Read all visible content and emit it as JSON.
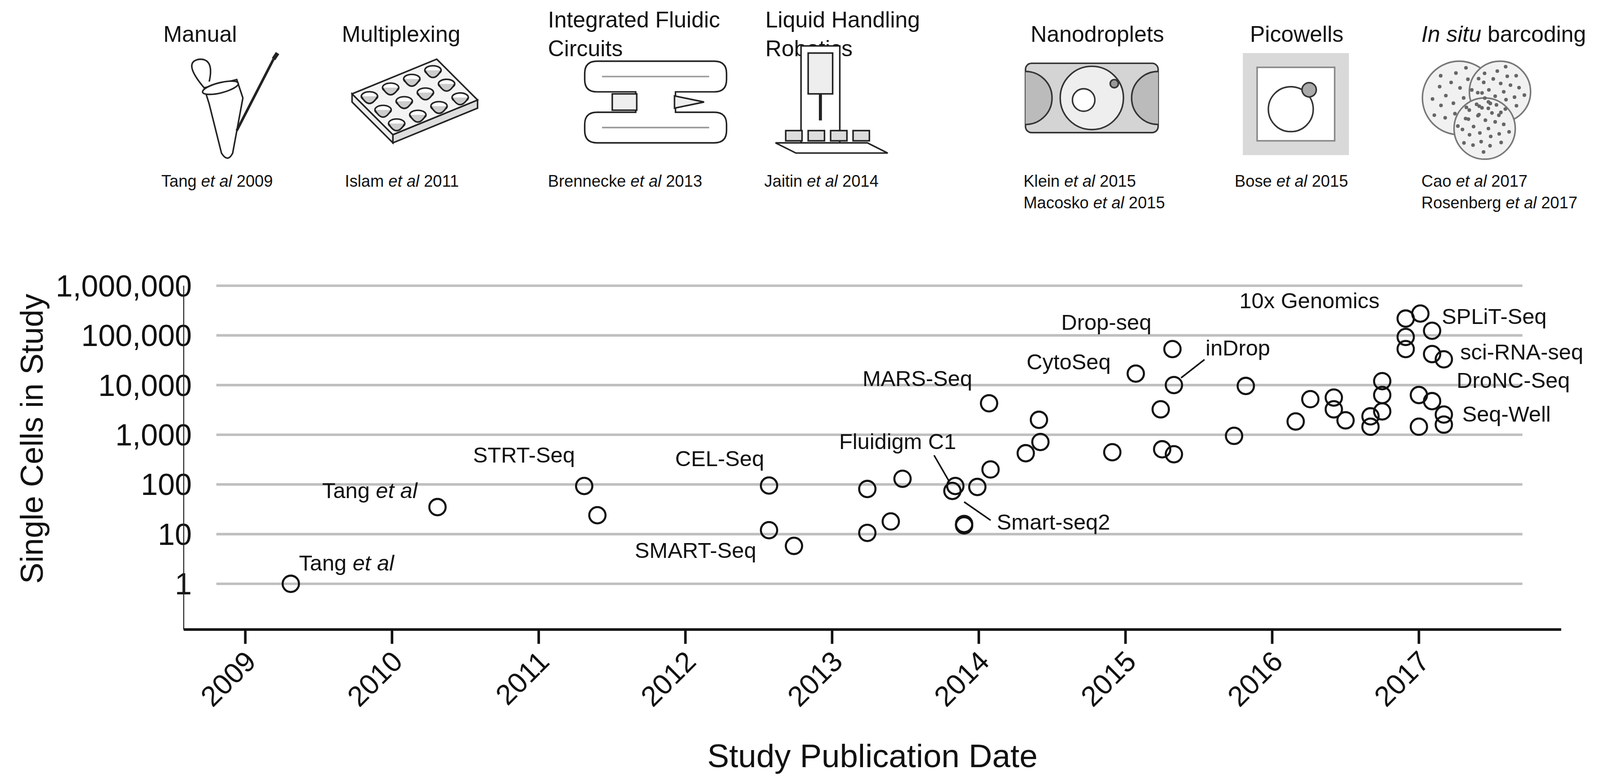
{
  "panels": [
    {
      "title": [
        {
          "text": "Manual"
        }
      ],
      "citations": [
        {
          "text": "Tang et al 2009",
          "italic": "et al"
        }
      ]
    },
    {
      "title": [
        {
          "text": "Multiplexing"
        }
      ],
      "citations": [
        {
          "text": "Islam et al 2011",
          "italic": "et al"
        }
      ]
    },
    {
      "title": [
        {
          "text": "Integrated Fluidic"
        },
        {
          "text": "Circuits"
        }
      ],
      "citations": [
        {
          "text": "Brennecke et al 2013",
          "italic": "et al"
        }
      ]
    },
    {
      "title": [
        {
          "text": "Liquid Handling"
        },
        {
          "text": "Robotics"
        }
      ],
      "citations": [
        {
          "text": "Jaitin et al 2014",
          "italic": "et al"
        }
      ]
    },
    {
      "title": [
        {
          "text": "Nanodroplets"
        }
      ],
      "citations": [
        {
          "text": "Klein et al 2015",
          "italic": "et al"
        },
        {
          "text": "Macosko et al 2015",
          "italic": "et al"
        }
      ]
    },
    {
      "title": [
        {
          "text": "Picowells"
        }
      ],
      "citations": [
        {
          "text": "Bose et al 2015",
          "italic": "et al"
        }
      ]
    },
    {
      "title": [
        {
          "text": "In situ barcoding",
          "italic": "In situ"
        }
      ],
      "citations": [
        {
          "text": "Cao et al 2017",
          "italic": "et al"
        },
        {
          "text": "Rosenberg et al 2017",
          "italic": "et al"
        }
      ]
    }
  ],
  "chart_data": {
    "type": "scatter",
    "x_label": "Study Publication Date",
    "y_label": "Single Cells in Study",
    "x": [
      2009.31,
      2010.31,
      2011.31,
      2011.4,
      2012.57,
      2012.57,
      2012.74,
      2013.24,
      2013.24,
      2013.4,
      2013.48,
      2013.82,
      2013.84,
      2013.9,
      2013.9,
      2013.99,
      2014.07,
      2014.08,
      2014.32,
      2014.41,
      2014.42,
      2014.91,
      2015.07,
      2015.24,
      2015.25,
      2015.32,
      2015.33,
      2015.33,
      2015.74,
      2015.82,
      2016.16,
      2016.26,
      2016.42,
      2016.42,
      2016.5,
      2016.67,
      2016.67,
      2016.75,
      2016.75,
      2016.75,
      2016.91,
      2016.91,
      2016.91,
      2017.0,
      2017.0,
      2017.01,
      2017.09,
      2017.09,
      2017.09,
      2017.17,
      2017.17,
      2017.17
    ],
    "values": [
      1,
      35,
      93,
      24,
      95,
      12,
      5.8,
      81,
      10.6,
      18,
      130,
      74,
      93,
      15,
      16,
      89,
      4300,
      200,
      425,
      2000,
      715,
      445,
      17000,
      3250,
      510,
      53000,
      10000,
      405,
      950,
      9600,
      1850,
      5200,
      5600,
      3250,
      1950,
      2350,
      1450,
      12000,
      6300,
      2950,
      218000,
      93000,
      53000,
      6300,
      1450,
      275000,
      124000,
      42000,
      4750,
      33000,
      2550,
      1600
    ],
    "xlim": [
      2008.58,
      2017.97
    ],
    "ylim": [
      0.12,
      1000000
    ],
    "xticks": [
      2009,
      2010,
      2011,
      2012,
      2013,
      2014,
      2015,
      2016,
      2017
    ],
    "yticks": [
      1,
      10,
      100,
      {
        "value": 1000,
        "label": "1,000"
      },
      {
        "value": 10000,
        "label": "10,000"
      },
      {
        "value": 100000,
        "label": "100,000"
      },
      {
        "value": 1000000,
        "label": "1,000,000"
      }
    ],
    "log": "y",
    "grid": true,
    "marker": "circle",
    "annotations": [
      {
        "text": "Tang et al",
        "italic": "et al",
        "x": 2009.31,
        "y": 1
      },
      {
        "text": "Tang et al",
        "italic": "et al",
        "x": 2010.31,
        "y": 35
      },
      {
        "text": "STRT-Seq",
        "x": 2011.31,
        "y": 93
      },
      {
        "text": "CEL-Seq",
        "x": 2012.57,
        "y": 95
      },
      {
        "text": "SMART-Seq",
        "x": 2012.74,
        "y": 5.8
      },
      {
        "text": "Fluidigm C1",
        "x": 2013.82,
        "y": 74
      },
      {
        "text": "Smart-seq2",
        "x": 2013.9,
        "y": 15
      },
      {
        "text": "MARS-Seq",
        "x": 2014.07,
        "y": 4300
      },
      {
        "text": "CytoSeq",
        "x": 2015.07,
        "y": 17000
      },
      {
        "text": "Drop-seq",
        "x": 2015.32,
        "y": 53000
      },
      {
        "text": "inDrop",
        "x": 2015.33,
        "y": 10000
      },
      {
        "text": "10x Genomics",
        "x": 2016.91,
        "y": 218000
      },
      {
        "text": "SPLiT-Seq",
        "x": 2017.01,
        "y": 275000
      },
      {
        "text": "sci-RNA-seq",
        "x": 2017.17,
        "y": 33000
      },
      {
        "text": "DroNC-Seq",
        "x": 2017.09,
        "y": 4750
      },
      {
        "text": "Seq-Well",
        "x": 2017.17,
        "y": 2550
      }
    ]
  }
}
